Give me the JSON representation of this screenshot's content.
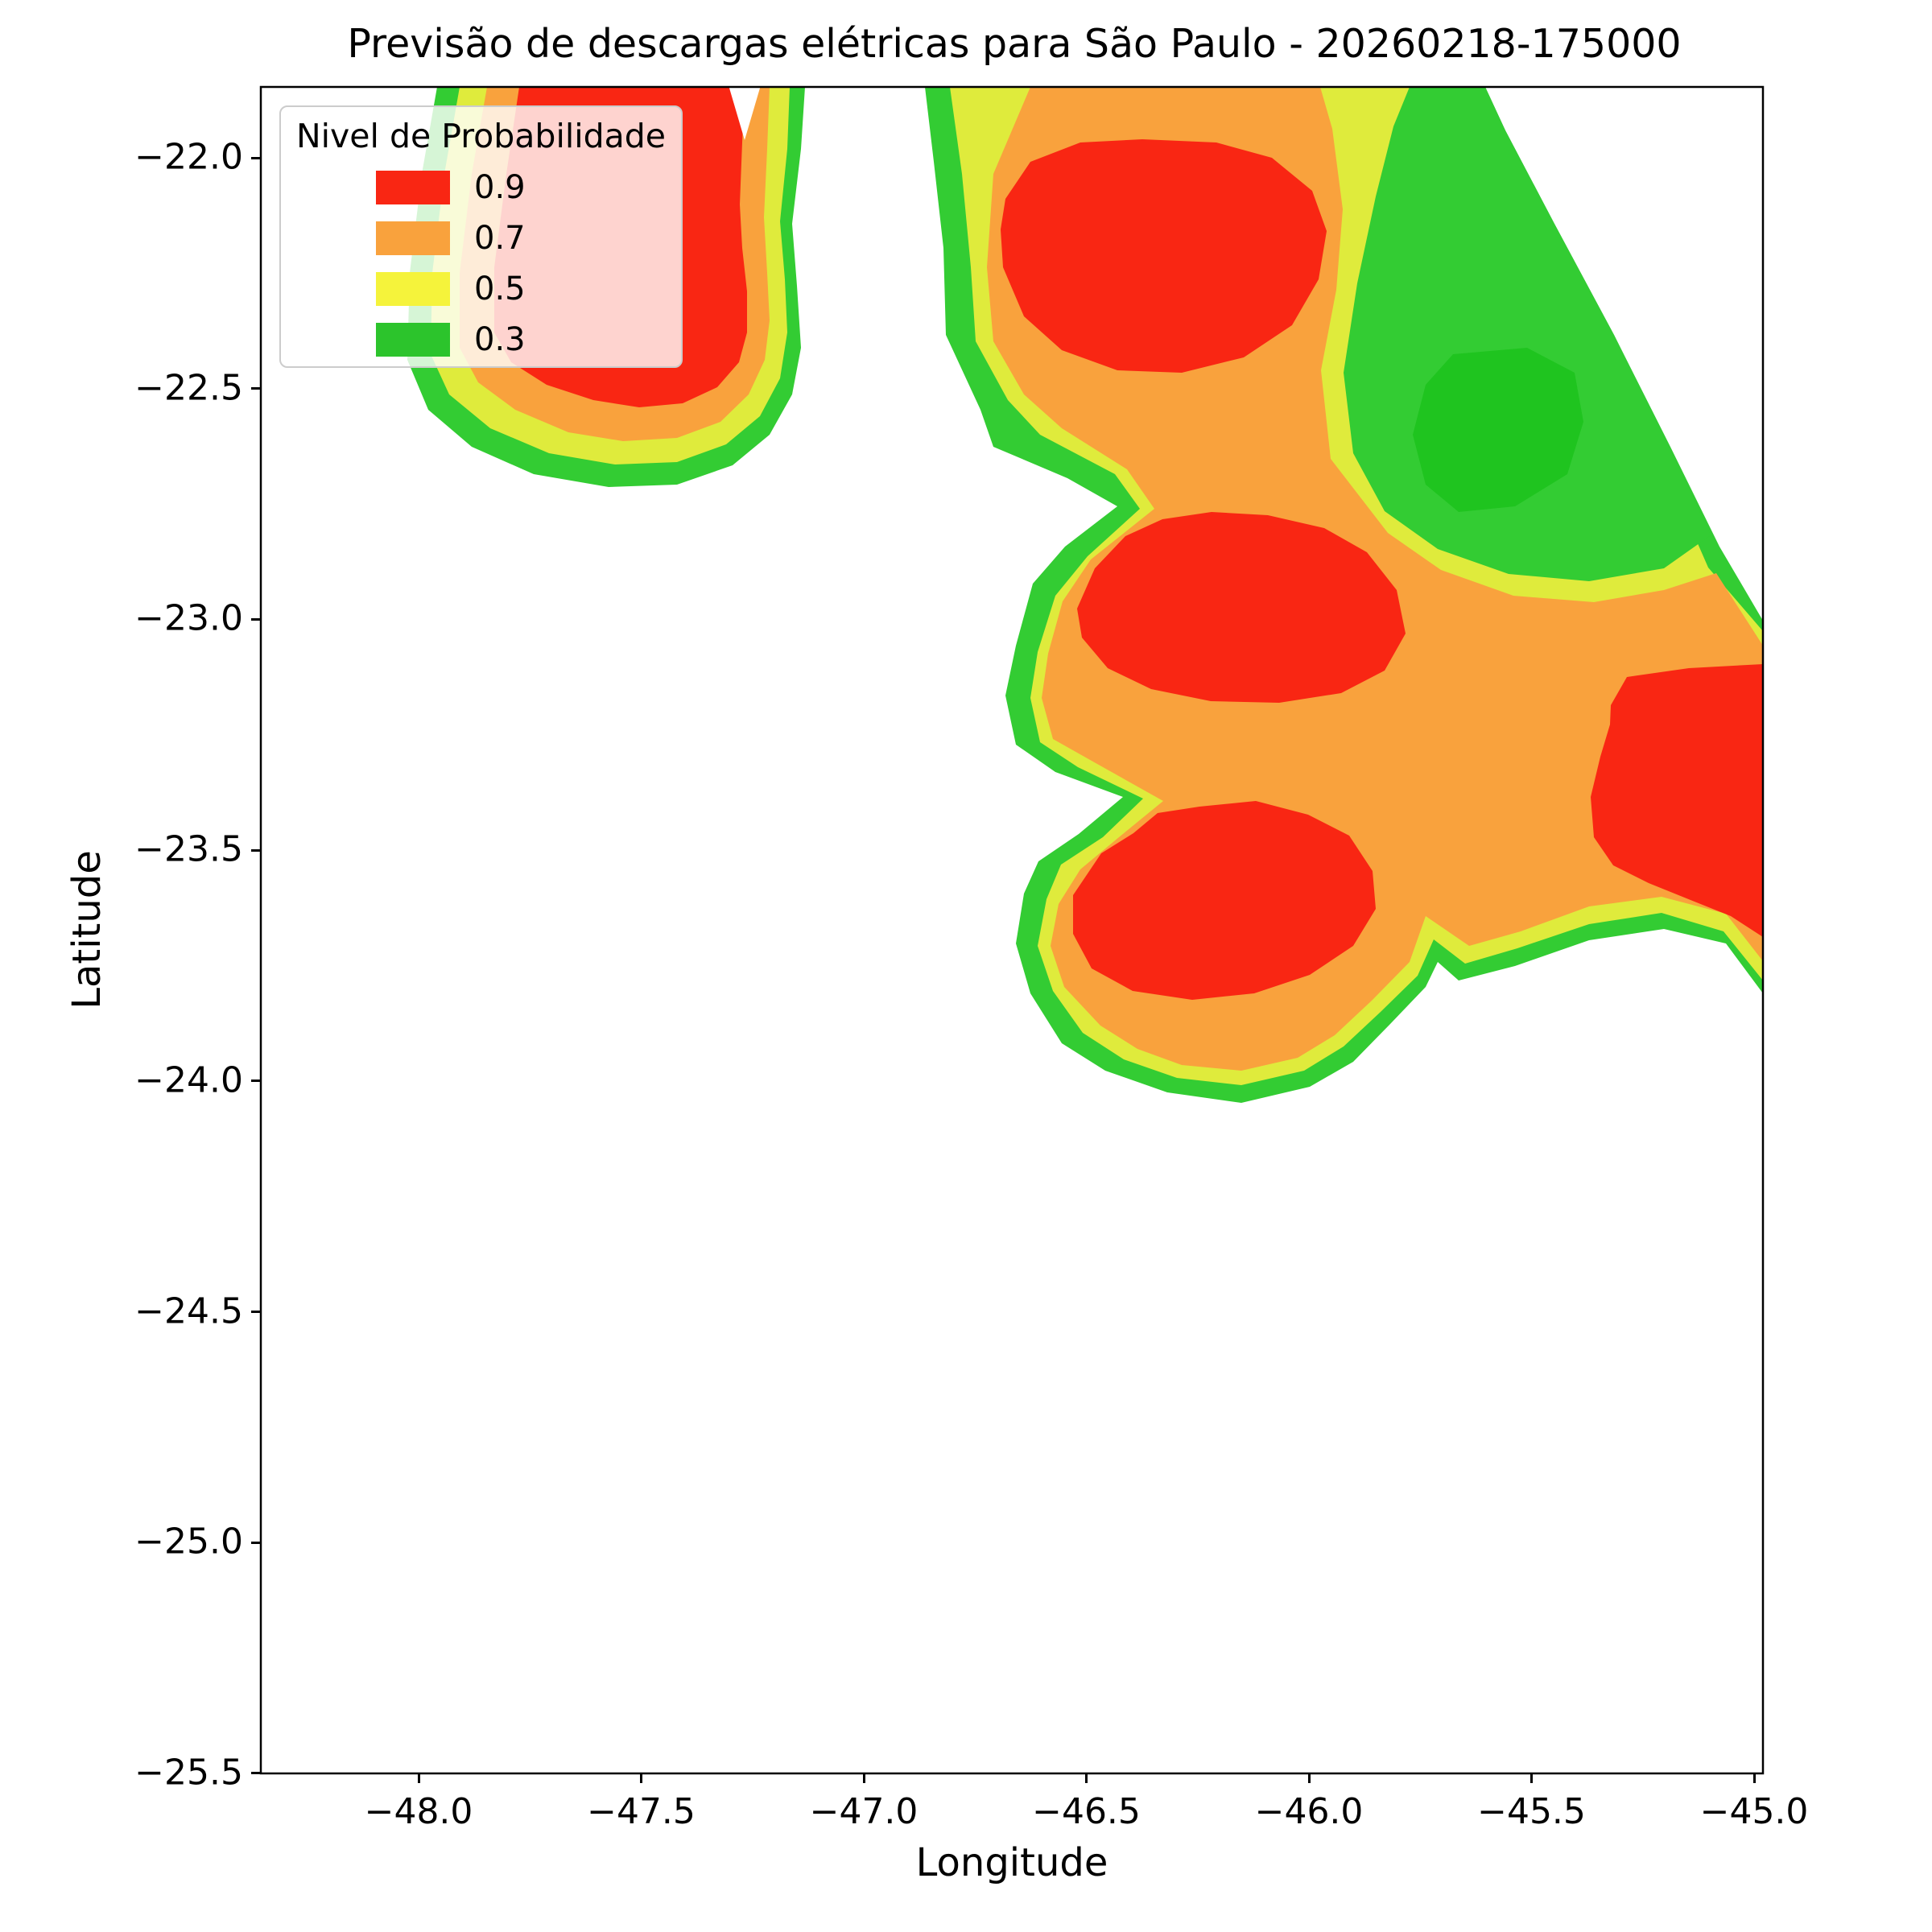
{
  "title": "Previsão de descargas elétricas para São Paulo - 20260218-175000",
  "axes": {
    "xlabel": "Longitude",
    "ylabel": "Latitude",
    "x_tick_labels": [
      "−48.0",
      "−47.5",
      "−47.0",
      "−46.5",
      "−46.0",
      "−45.5",
      "−45.0"
    ],
    "y_tick_labels": [
      "−22.0",
      "−22.5",
      "−23.0",
      "−23.5",
      "−24.0",
      "−24.5",
      "−25.0",
      "−25.5"
    ]
  },
  "legend": {
    "title": "Nivel de Probabilidade",
    "entries": [
      {
        "label": "0.9",
        "color": "#f92613"
      },
      {
        "label": "0.7",
        "color": "#f9a23d"
      },
      {
        "label": "0.5",
        "color": "#f5f33b"
      },
      {
        "label": "0.3",
        "color": "#2cc42c"
      }
    ]
  },
  "chart_data": {
    "type": "filled-contour-map",
    "title": "Previsão de descargas elétricas para São Paulo - 20260218-175000",
    "xlabel": "Longitude",
    "ylabel": "Latitude",
    "xlim": [
      -48.35,
      -44.95
    ],
    "ylim": [
      -25.5,
      -21.85
    ],
    "xticks": [
      -48.0,
      -47.5,
      -47.0,
      -46.5,
      -46.0,
      -45.5,
      -45.0
    ],
    "yticks": [
      -22.0,
      -22.5,
      -23.0,
      -23.5,
      -24.0,
      -24.5,
      -25.0,
      -25.5
    ],
    "grid": false,
    "legend_position": "upper left",
    "levels": [
      0.3,
      0.5,
      0.7,
      0.9
    ],
    "level_colors": [
      {
        "level": 0.3,
        "color": "#33cc33"
      },
      {
        "level": 0.5,
        "color": "#dfeb3c"
      },
      {
        "level": 0.7,
        "color": "#f9a23d"
      },
      {
        "level": 0.9,
        "color": "#f92613"
      }
    ],
    "pocket_core_color": "#1fc41f",
    "storm_cells": [
      {
        "name": "northwest-cell",
        "center": {
          "lon": -47.55,
          "lat": -22.25
        },
        "extent_lon": [
          -48.05,
          -47.13
        ],
        "extent_lat": [
          -22.85,
          -21.85
        ],
        "peak_level": 0.9
      },
      {
        "name": "north-central-cell",
        "center": {
          "lon": -46.29,
          "lat": -22.22
        },
        "extent_lon": [
          -46.68,
          -45.91
        ],
        "extent_lat": [
          -22.47,
          -21.96
        ],
        "peak_level": 0.9
      },
      {
        "name": "central-cell",
        "center": {
          "lon": -46.18,
          "lat": -22.98
        },
        "extent_lon": [
          -46.58,
          -45.78
        ],
        "extent_lat": [
          -23.18,
          -22.77
        ],
        "peak_level": 0.9
      },
      {
        "name": "south-central-cell",
        "center": {
          "lon": -46.21,
          "lat": -23.61
        },
        "extent_lon": [
          -46.57,
          -45.84
        ],
        "extent_lat": [
          -23.83,
          -23.38
        ],
        "peak_level": 0.9
      },
      {
        "name": "east-cell",
        "center": {
          "lon": -45.18,
          "lat": -23.39
        },
        "extent_lon": [
          -45.45,
          -44.95
        ],
        "extent_lat": [
          -23.72,
          -23.08
        ],
        "peak_level": 0.9
      },
      {
        "name": "low-probability-pocket",
        "center": {
          "lon": -45.57,
          "lat": -22.59
        },
        "extent_lon": [
          -45.85,
          -45.35
        ],
        "extent_lat": [
          -22.85,
          -21.85
        ],
        "peak_level": 0.3
      }
    ]
  }
}
